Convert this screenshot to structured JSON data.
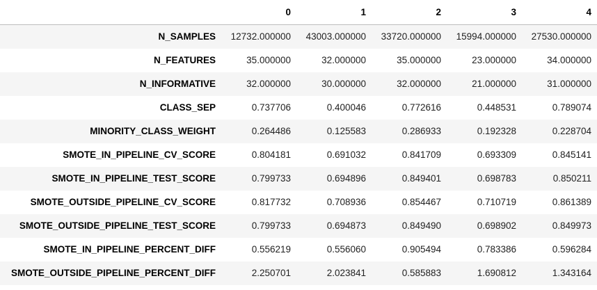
{
  "table": {
    "columns": [
      "0",
      "1",
      "2",
      "3",
      "4"
    ],
    "rows": [
      {
        "label": "N_SAMPLES",
        "values": [
          "12732.000000",
          "43003.000000",
          "33720.000000",
          "15994.000000",
          "27530.000000"
        ]
      },
      {
        "label": "N_FEATURES",
        "values": [
          "35.000000",
          "32.000000",
          "35.000000",
          "23.000000",
          "34.000000"
        ]
      },
      {
        "label": "N_INFORMATIVE",
        "values": [
          "32.000000",
          "30.000000",
          "32.000000",
          "21.000000",
          "31.000000"
        ]
      },
      {
        "label": "CLASS_SEP",
        "values": [
          "0.737706",
          "0.400046",
          "0.772616",
          "0.448531",
          "0.789074"
        ]
      },
      {
        "label": "MINORITY_CLASS_WEIGHT",
        "values": [
          "0.264486",
          "0.125583",
          "0.286933",
          "0.192328",
          "0.228704"
        ]
      },
      {
        "label": "SMOTE_IN_PIPELINE_CV_SCORE",
        "values": [
          "0.804181",
          "0.691032",
          "0.841709",
          "0.693309",
          "0.845141"
        ]
      },
      {
        "label": "SMOTE_IN_PIPELINE_TEST_SCORE",
        "values": [
          "0.799733",
          "0.694896",
          "0.849401",
          "0.698783",
          "0.850211"
        ]
      },
      {
        "label": "SMOTE_OUTSIDE_PIPELINE_CV_SCORE",
        "values": [
          "0.817732",
          "0.708936",
          "0.854467",
          "0.710719",
          "0.861389"
        ]
      },
      {
        "label": "SMOTE_OUTSIDE_PIPELINE_TEST_SCORE",
        "values": [
          "0.799733",
          "0.694873",
          "0.849490",
          "0.698902",
          "0.849973"
        ]
      },
      {
        "label": "SMOTE_IN_PIPELINE_PERCENT_DIFF",
        "values": [
          "0.556219",
          "0.556060",
          "0.905494",
          "0.783386",
          "0.596284"
        ]
      },
      {
        "label": "SMOTE_OUTSIDE_PIPELINE_PERCENT_DIFF",
        "values": [
          "2.250701",
          "2.023841",
          "0.585883",
          "1.690812",
          "1.343164"
        ]
      }
    ]
  },
  "colors": {
    "stripe": "#f5f5f5",
    "header_rule": "#bdbdbd"
  }
}
